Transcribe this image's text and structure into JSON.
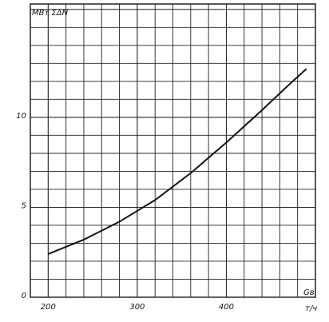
{
  "chart_data": {
    "type": "line",
    "y_label": "МВт ΣΔN",
    "x_label": "Gв",
    "x_unit": "т/ч",
    "x": [
      200,
      240,
      280,
      300,
      320,
      360,
      400,
      440,
      470,
      490
    ],
    "series": [
      {
        "color": "#111111",
        "values": [
          2.4,
          3.2,
          4.2,
          4.8,
          5.4,
          6.9,
          8.6,
          10.4,
          11.8,
          12.7
        ]
      }
    ],
    "xlim": [
      180,
      500
    ],
    "xticks": [
      200,
      300,
      400
    ],
    "ylim": [
      0,
      16.3
    ],
    "yticks": [
      0,
      5,
      10
    ],
    "grid": true
  }
}
